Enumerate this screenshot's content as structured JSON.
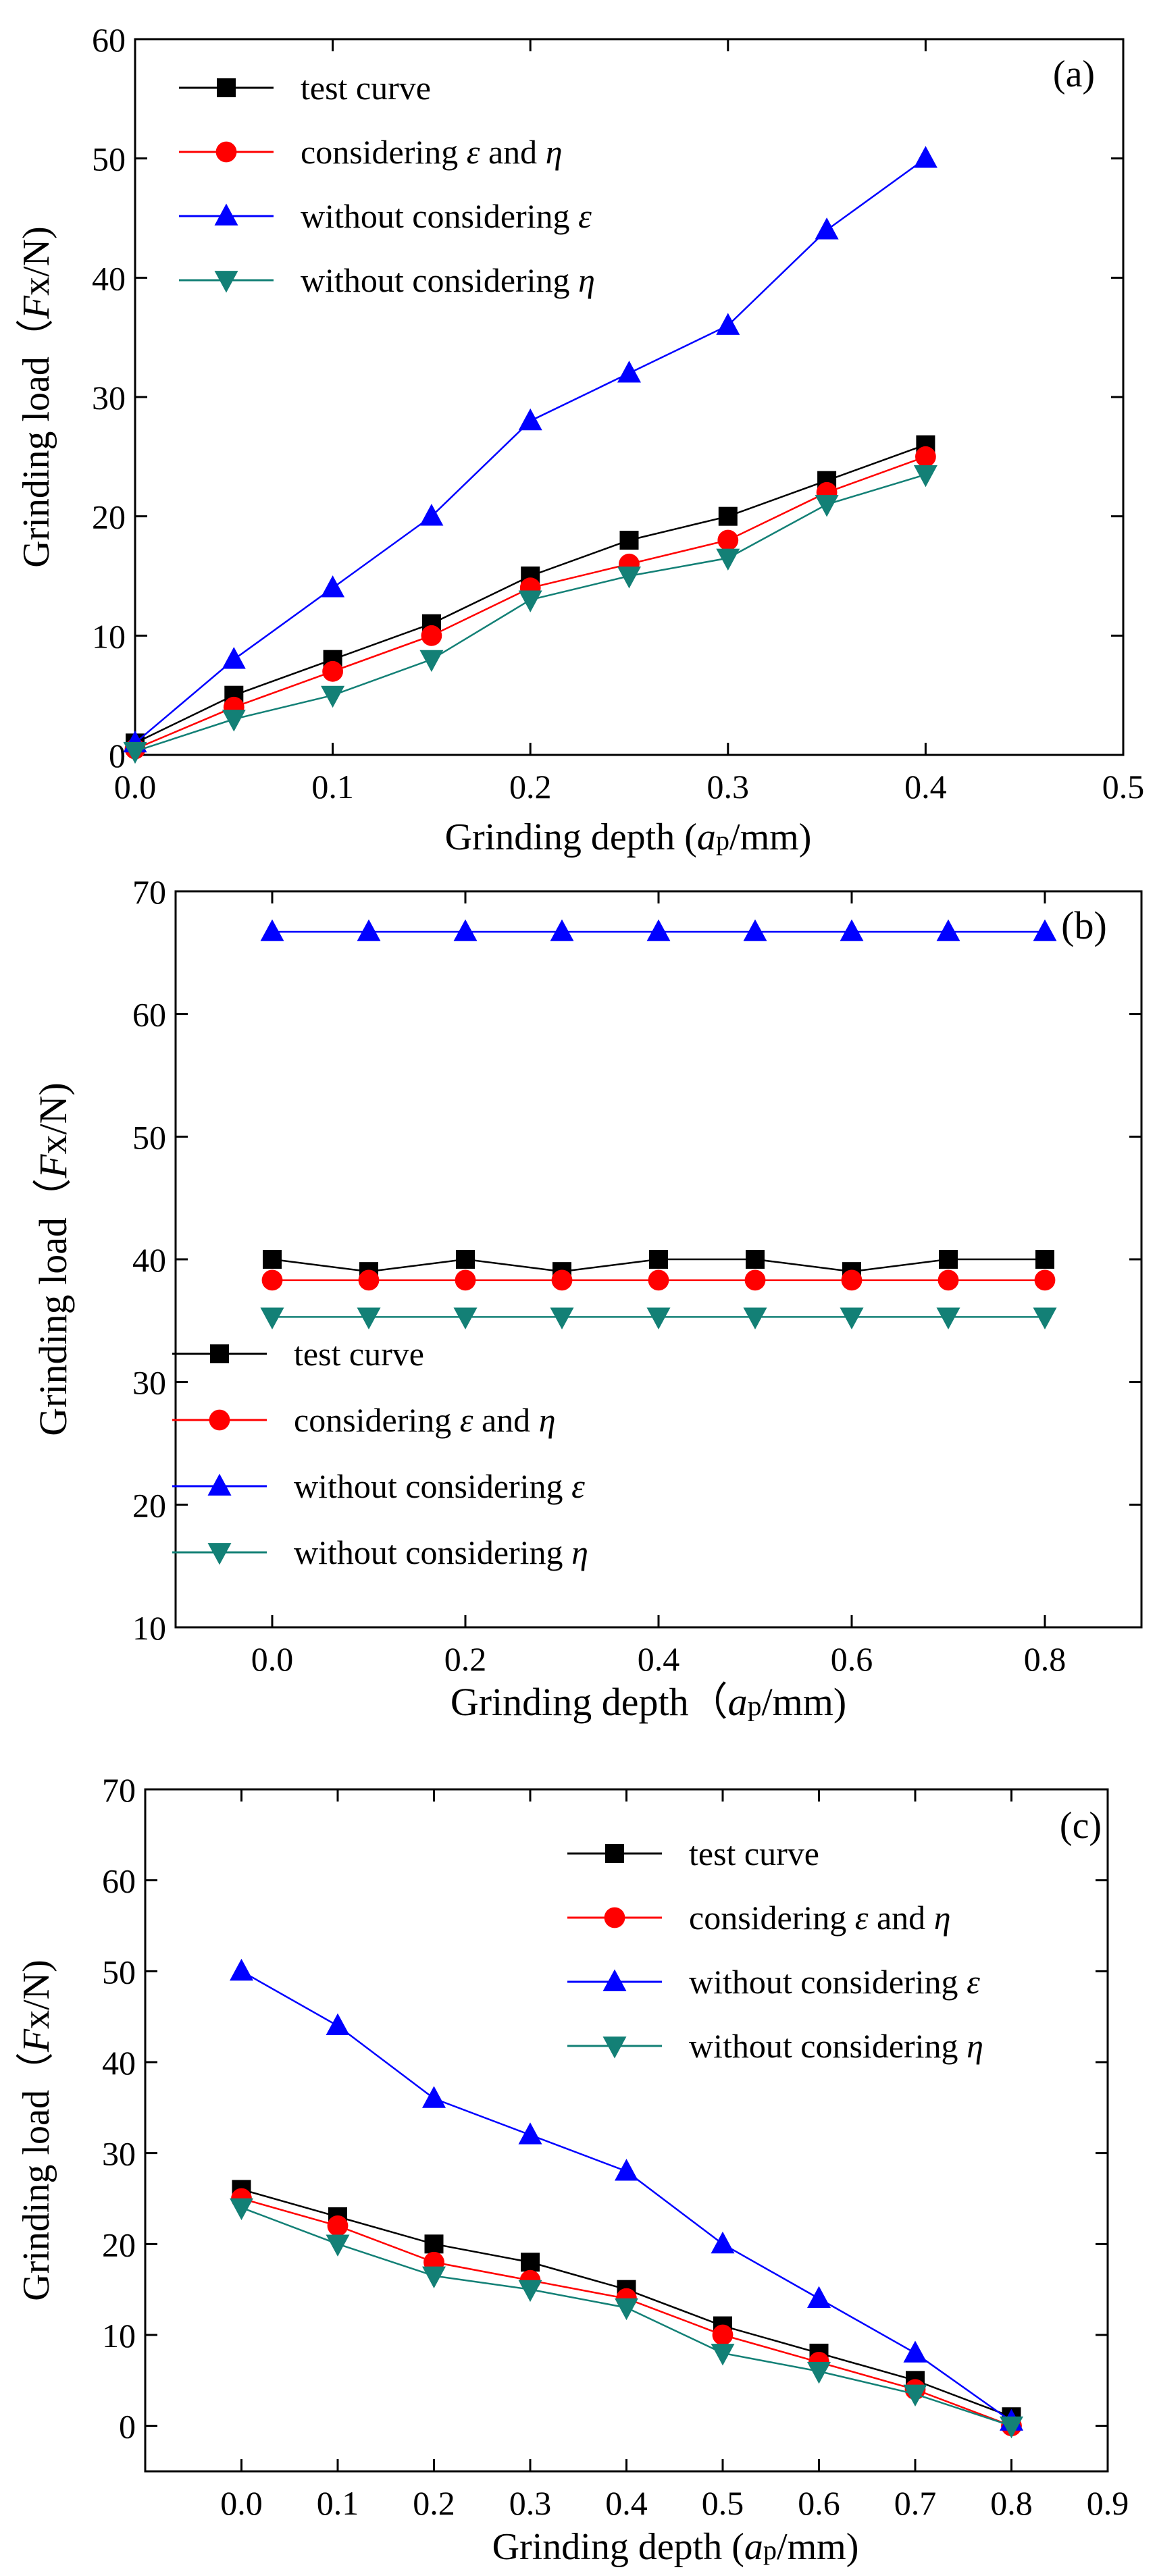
{
  "figure": {
    "panel_count": 3
  },
  "series_styles": [
    {
      "name": "test curve",
      "color": "#000000",
      "marker": "square"
    },
    {
      "name": "considering ε and η",
      "color": "#ff0000",
      "marker": "circle"
    },
    {
      "name": "without considering ε",
      "color": "#0000ff",
      "marker": "triangle-up"
    },
    {
      "name": "without considering η",
      "color": "#138076",
      "marker": "triangle-down"
    }
  ],
  "chart_data": [
    {
      "type": "line",
      "panel_label": "(a)",
      "xlabel_parts": [
        "Grinding depth (",
        "a",
        "p",
        "/mm)"
      ],
      "ylabel_parts": [
        "Grinding load（",
        "F",
        "x/N)"
      ],
      "xlim": [
        0,
        0.5
      ],
      "ylim": [
        0,
        60
      ],
      "xticks": [
        0.0,
        0.1,
        0.2,
        0.3,
        0.4,
        0.5
      ],
      "yticks": [
        0,
        10,
        20,
        30,
        40,
        50,
        60
      ],
      "xtick_labels": [
        "0.0",
        "0.1",
        "0.2",
        "0.3",
        "0.4",
        "0.5"
      ],
      "ytick_labels": [
        "0",
        "10",
        "20",
        "30",
        "40",
        "50",
        "60"
      ],
      "legend_position": "top-left",
      "legend": [
        {
          "prefix": "test curve",
          "symbol": "",
          "mid": "",
          "symbol2": ""
        },
        {
          "prefix": "considering ",
          "symbol": "ε",
          "mid": " and ",
          "symbol2": "η"
        },
        {
          "prefix": "without considering ",
          "symbol": "ε",
          "mid": "",
          "symbol2": ""
        },
        {
          "prefix": "without considering ",
          "symbol": "η",
          "mid": "",
          "symbol2": ""
        }
      ],
      "x": [
        0,
        0.05,
        0.1,
        0.15,
        0.2,
        0.25,
        0.3,
        0.35,
        0.4
      ],
      "series": [
        {
          "name": "test curve",
          "values": [
            1,
            5,
            8,
            11,
            15,
            18,
            20,
            23,
            26
          ]
        },
        {
          "name": "considering ε and η",
          "values": [
            0.5,
            4,
            7,
            10,
            14,
            16,
            18,
            22,
            25
          ]
        },
        {
          "name": "without considering ε",
          "values": [
            1,
            8,
            14,
            20,
            28,
            32,
            36,
            44,
            50
          ]
        },
        {
          "name": "without considering η",
          "values": [
            0.3,
            3,
            5,
            8,
            13,
            15,
            16.5,
            21,
            23.5
          ]
        }
      ]
    },
    {
      "type": "line",
      "panel_label": "(b)",
      "xlabel_parts": [
        "Grinding depth（",
        "a",
        "p",
        "/mm)"
      ],
      "ylabel_parts": [
        "Grinding load（",
        "F",
        "x/N)"
      ],
      "xlim": [
        -0.1,
        0.9
      ],
      "ylim": [
        10,
        70
      ],
      "xticks": [
        0.0,
        0.2,
        0.4,
        0.6,
        0.8
      ],
      "yticks": [
        10,
        20,
        30,
        40,
        50,
        60,
        70
      ],
      "xtick_labels": [
        "0.0",
        "0.2",
        "0.4",
        "0.6",
        "0.8"
      ],
      "ytick_labels": [
        "10",
        "20",
        "30",
        "40",
        "50",
        "60",
        "70"
      ],
      "legend_position": "lower-left",
      "legend": [
        {
          "prefix": "test curve",
          "symbol": "",
          "mid": "",
          "symbol2": ""
        },
        {
          "prefix": "considering ",
          "symbol": "ε",
          "mid": " and ",
          "symbol2": "η"
        },
        {
          "prefix": "without considering ",
          "symbol": "ε",
          "mid": "",
          "symbol2": ""
        },
        {
          "prefix": "without considering ",
          "symbol": "η",
          "mid": "",
          "symbol2": ""
        }
      ],
      "x": [
        0,
        0.1,
        0.2,
        0.3,
        0.4,
        0.5,
        0.6,
        0.7,
        0.8
      ],
      "series": [
        {
          "name": "test curve",
          "values": [
            40,
            39,
            40,
            39,
            40,
            40,
            39,
            40,
            40
          ]
        },
        {
          "name": "considering ε and η",
          "values": [
            38.3,
            38.3,
            38.3,
            38.3,
            38.3,
            38.3,
            38.3,
            38.3,
            38.3
          ]
        },
        {
          "name": "without considering ε",
          "values": [
            66.7,
            66.7,
            66.7,
            66.7,
            66.7,
            66.7,
            66.7,
            66.7,
            66.7
          ]
        },
        {
          "name": "without considering η",
          "values": [
            35.3,
            35.3,
            35.3,
            35.3,
            35.3,
            35.3,
            35.3,
            35.3,
            35.3
          ]
        }
      ]
    },
    {
      "type": "line",
      "panel_label": "(c)",
      "xlabel_parts": [
        "Grinding depth (",
        "a",
        "p",
        "/mm)"
      ],
      "ylabel_parts": [
        "Grinding load（",
        "F",
        "x/N)"
      ],
      "xlim": [
        -0.1,
        0.9
      ],
      "ylim": [
        -5,
        70
      ],
      "xticks": [
        0.0,
        0.1,
        0.2,
        0.3,
        0.4,
        0.5,
        0.6,
        0.7,
        0.8,
        0.9
      ],
      "yticks": [
        0,
        10,
        20,
        30,
        40,
        50,
        60,
        70
      ],
      "xtick_labels": [
        "0.0",
        "0.1",
        "0.2",
        "0.3",
        "0.4",
        "0.5",
        "0.6",
        "0.7",
        "0.8",
        "0.9"
      ],
      "ytick_labels": [
        "0",
        "10",
        "20",
        "30",
        "40",
        "50",
        "60",
        "70"
      ],
      "legend_position": "top-right",
      "legend": [
        {
          "prefix": "test curve",
          "symbol": "",
          "mid": "",
          "symbol2": ""
        },
        {
          "prefix": "considering ",
          "symbol": "ε",
          "mid": " and ",
          "symbol2": "η"
        },
        {
          "prefix": "without considering ",
          "symbol": "ε",
          "mid": "",
          "symbol2": ""
        },
        {
          "prefix": "without considering ",
          "symbol": "η",
          "mid": "",
          "symbol2": ""
        }
      ],
      "x": [
        0,
        0.1,
        0.2,
        0.3,
        0.4,
        0.5,
        0.6,
        0.7,
        0.8
      ],
      "series": [
        {
          "name": "test curve",
          "values": [
            26,
            23,
            20,
            18,
            15,
            11,
            8,
            5,
            1
          ]
        },
        {
          "name": "considering ε and η",
          "values": [
            25,
            22,
            18,
            16,
            14,
            10,
            7,
            4,
            0
          ]
        },
        {
          "name": "without considering ε",
          "values": [
            50,
            44,
            36,
            32,
            28,
            20,
            14,
            8,
            0.5
          ]
        },
        {
          "name": "without considering η",
          "values": [
            24,
            20,
            16.5,
            15,
            13,
            8,
            6,
            3.5,
            0
          ]
        }
      ]
    }
  ]
}
